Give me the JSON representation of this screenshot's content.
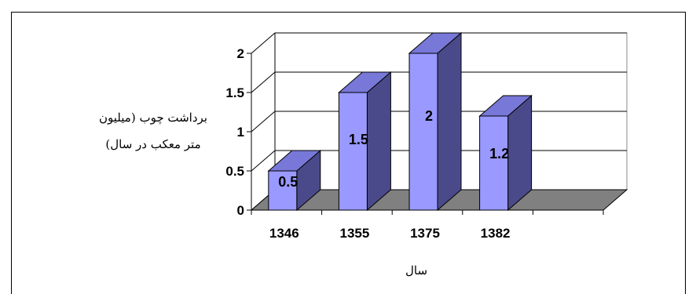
{
  "chart_data": {
    "type": "bar",
    "style": "3d-column",
    "categories": [
      "1346",
      "1355",
      "1375",
      "1382"
    ],
    "values": [
      0.5,
      1.5,
      2,
      1.2
    ],
    "data_labels": [
      "0.5",
      "1.5",
      "2",
      "1.2"
    ],
    "ylabel_line1": "برداشت چوب (میلیون",
    "ylabel_line2": "متر معکب در سال)",
    "xlabel": "سال",
    "ylim": [
      0,
      2
    ],
    "yticks": [
      "0",
      "0.5",
      "1",
      "1.5",
      "2"
    ],
    "grid": true,
    "colors": {
      "bar_front": "#9999ff",
      "bar_side": "#4a4a8a",
      "bar_top": "#7878d8",
      "floor": "#808080"
    }
  }
}
